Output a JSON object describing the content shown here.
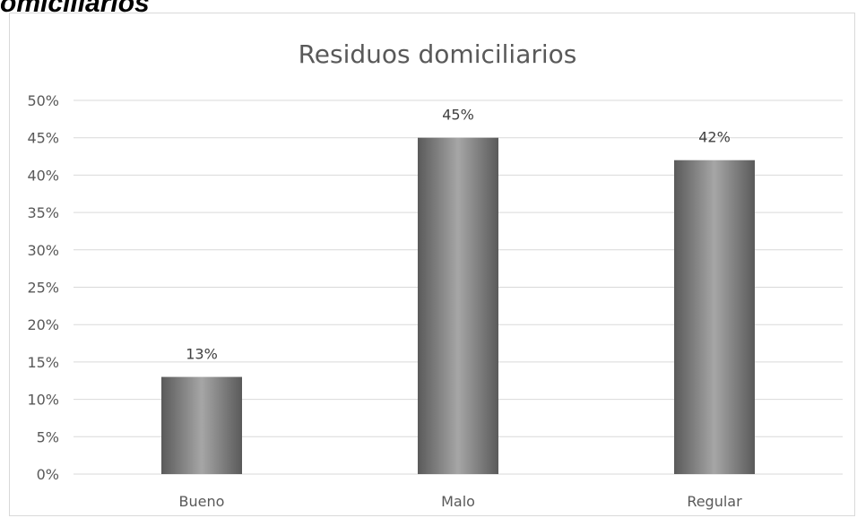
{
  "heading_fragment": "omiciliarios",
  "chart_data": {
    "type": "bar",
    "title": "Residuos domiciliarios",
    "xlabel": "",
    "ylabel": "",
    "categories": [
      "Bueno",
      "Malo",
      "Regular"
    ],
    "values": [
      13,
      45,
      42
    ],
    "data_labels": [
      "13%",
      "45%",
      "42%"
    ],
    "ylim": [
      0,
      50
    ],
    "yticks": [
      0,
      5,
      10,
      15,
      20,
      25,
      30,
      35,
      40,
      45,
      50
    ],
    "ytick_labels": [
      "0%",
      "5%",
      "10%",
      "15%",
      "20%",
      "25%",
      "30%",
      "35%",
      "40%",
      "45%",
      "50%"
    ],
    "value_unit": "%",
    "grid": true,
    "legend": "none",
    "colors": {
      "bar_center": "#a6a6a6",
      "bar_edge": "#5a5a5a",
      "gridline": "#d9d9d9",
      "text": "#595959"
    }
  }
}
